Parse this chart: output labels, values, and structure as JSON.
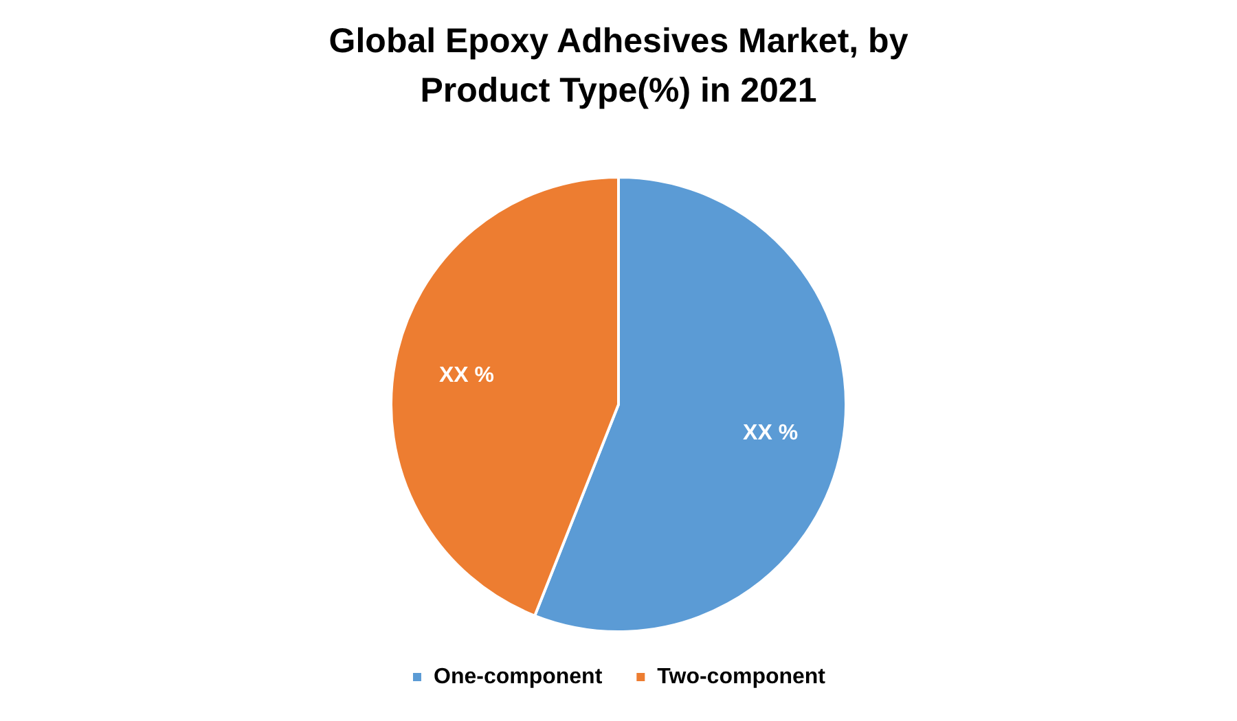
{
  "chart_data": {
    "type": "pie",
    "title": "Global Epoxy Adhesives Market, by Product Type(%) in 2021",
    "categories": [
      "One-component",
      "Two-component"
    ],
    "values": [
      56,
      44
    ],
    "colors": [
      "#5b9bd5",
      "#ed7d31"
    ],
    "value_labels": [
      "XX %",
      "XX %"
    ],
    "legend": "bottom"
  }
}
